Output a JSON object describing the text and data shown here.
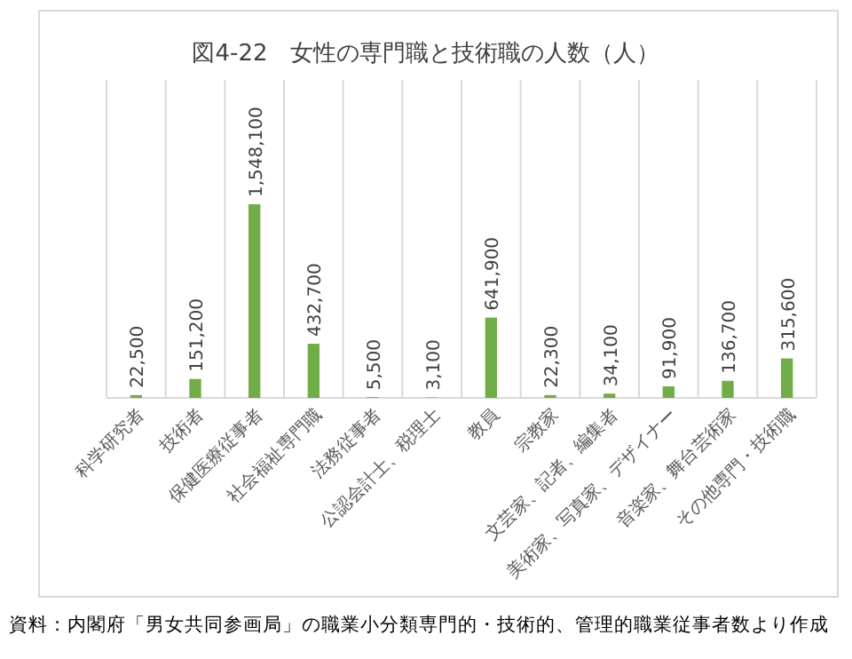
{
  "chart_data": {
    "type": "bar",
    "title": "図4-22　女性の専門職と技術職の人数（人）",
    "categories": [
      "科学研究者",
      "技術者",
      "保健医療従事者",
      "社会福祉専門職",
      "法務従事者",
      "公認会計士、税理士",
      "教員",
      "宗教家",
      "文芸家、記者、編集者",
      "美術家、写真家、デザイナー",
      "音楽家、舞台芸術家",
      "その他専門・技術職"
    ],
    "values": [
      22500,
      151200,
      1548100,
      432700,
      5500,
      3100,
      641900,
      22300,
      34100,
      91900,
      136700,
      315600
    ],
    "value_labels": [
      "22,500",
      "151,200",
      "1,548,100",
      "432,700",
      "5,500",
      "3,100",
      "641,900",
      "22,300",
      "34,100",
      "91,900",
      "136,700",
      "315,600"
    ],
    "color": "#70ad47",
    "grid": "x",
    "annotations": [
      "資料：内閣府「男女共同参画局」の職業小分類専門的・技術的、管理的職業従事者数より作成"
    ]
  }
}
